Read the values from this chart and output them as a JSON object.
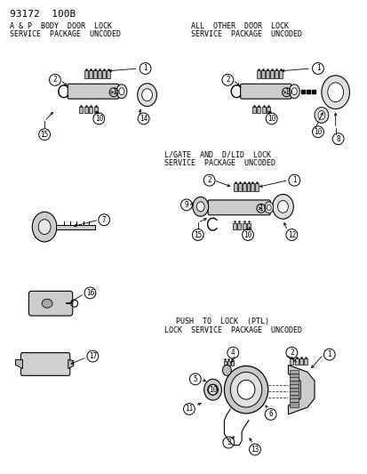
{
  "bg_color": "#ffffff",
  "fig_width": 4.14,
  "fig_height": 5.33,
  "dpi": 100,
  "header": "93172  100B",
  "s1_title1": "A & P  BODY  DOOR  LOCK",
  "s1_title2": "SERVICE  PACKAGE  UNCODED",
  "s2_title1": "ALL  OTHER  DOOR  LOCK",
  "s2_title2": "SERVICE  PACKAGE  UNCODED",
  "s3_title1": "L/GATE  AND  D/LID  LOCK",
  "s3_title2": "SERVICE  PACKAGE  UNCODED",
  "s4_title1": "PUSH  TO  LOCK  (PTL)",
  "s4_title2": "LOCK  SERVICE  PACKAGE  UNCODED",
  "text_color": "#000000",
  "comp_fill": "#cccccc",
  "comp_edge": "#000000"
}
